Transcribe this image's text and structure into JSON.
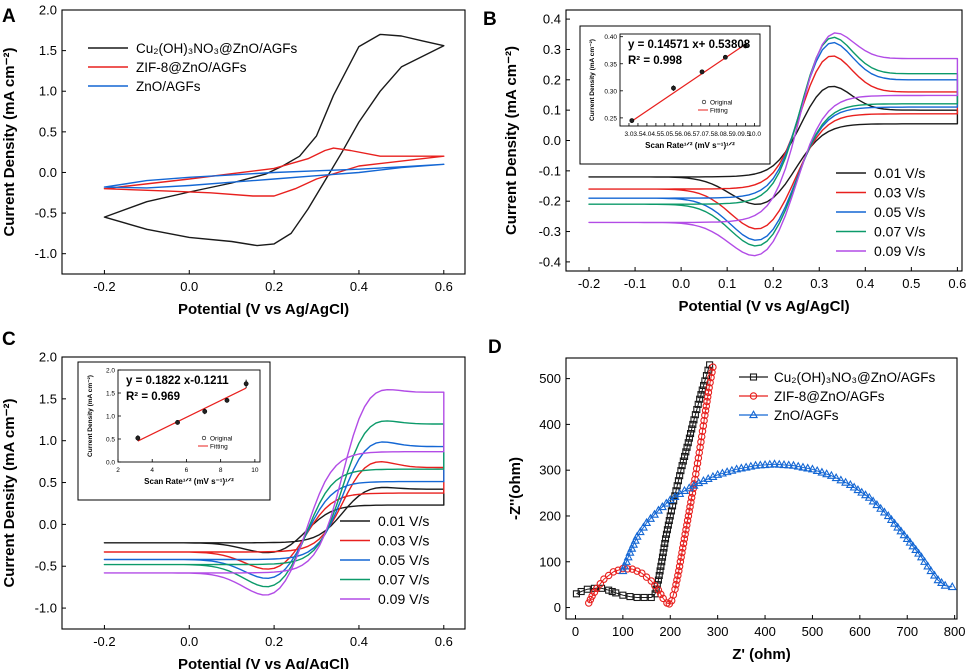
{
  "colors": {
    "black": "#1a1a1a",
    "red": "#e8201e",
    "blue": "#1467d4",
    "green": "#0c9a6a",
    "violet": "#b24ce6",
    "fit_red": "#e8201e"
  },
  "chart_data": [
    {
      "panel_label": "A",
      "type": "line",
      "title": "",
      "xlabel": "Potential (V vs Ag/AgCl)",
      "ylabel": "Current Density (mA cm⁻²)",
      "xlim": [
        -0.3,
        0.65
      ],
      "ylim": [
        -1.25,
        2.0
      ],
      "xticks": [
        -0.2,
        0.0,
        0.2,
        0.4,
        0.6
      ],
      "xtick_labels": [
        "-0.2",
        "0.0",
        "0.2",
        "0.4",
        "0.6"
      ],
      "yticks": [
        -1.0,
        -0.5,
        0.0,
        0.5,
        1.0,
        1.5,
        2.0
      ],
      "ytick_labels": [
        "-1.0",
        "-0.5",
        "0.0",
        "0.5",
        "1.0",
        "1.5",
        "2.0"
      ],
      "legend_position": "top-left",
      "series": [
        {
          "name": "Cu₂(OH)₃NO₃@ZnO/AGFs",
          "color": "black",
          "x": [
            -0.2,
            -0.1,
            0.0,
            0.1,
            0.18,
            0.22,
            0.26,
            0.3,
            0.34,
            0.4,
            0.45,
            0.5,
            0.55,
            0.6,
            0.6,
            0.5,
            0.45,
            0.4,
            0.36,
            0.32,
            0.28,
            0.24,
            0.2,
            0.16,
            0.1,
            0.0,
            -0.1,
            -0.2
          ],
          "y": [
            -0.55,
            -0.36,
            -0.24,
            -0.13,
            -0.02,
            0.08,
            0.2,
            0.45,
            0.95,
            1.55,
            1.7,
            1.68,
            1.62,
            1.56,
            1.56,
            1.3,
            1.0,
            0.62,
            0.25,
            -0.1,
            -0.45,
            -0.75,
            -0.88,
            -0.9,
            -0.85,
            -0.8,
            -0.7,
            -0.55
          ]
        },
        {
          "name": "ZIF-8@ZnO/AGFs",
          "color": "red",
          "x": [
            -0.2,
            0.0,
            0.2,
            0.28,
            0.32,
            0.34,
            0.38,
            0.45,
            0.6,
            0.6,
            0.4,
            0.3,
            0.25,
            0.2,
            0.15,
            0.05,
            -0.05,
            -0.2
          ],
          "y": [
            -0.2,
            -0.08,
            0.05,
            0.17,
            0.27,
            0.3,
            0.27,
            0.2,
            0.2,
            0.2,
            0.08,
            -0.08,
            -0.2,
            -0.29,
            -0.29,
            -0.25,
            -0.23,
            -0.2
          ]
        },
        {
          "name": "ZnO/AGFs",
          "color": "blue",
          "x": [
            -0.2,
            -0.1,
            0.0,
            0.1,
            0.2,
            0.3,
            0.4,
            0.5,
            0.6,
            0.6,
            0.5,
            0.4,
            0.3,
            0.2,
            0.1,
            0.0,
            -0.1,
            -0.2
          ],
          "y": [
            -0.18,
            -0.1,
            -0.06,
            -0.03,
            0.0,
            0.02,
            0.04,
            0.07,
            0.1,
            0.1,
            0.06,
            0.0,
            -0.04,
            -0.08,
            -0.12,
            -0.16,
            -0.19,
            -0.18
          ]
        }
      ]
    },
    {
      "panel_label": "B",
      "type": "line",
      "title": "",
      "xlabel": "Potential (V vs Ag/AgCl)",
      "ylabel": "Current Density (mA cm⁻²)",
      "xlim": [
        -0.25,
        0.61
      ],
      "ylim": [
        -0.43,
        0.43
      ],
      "xticks": [
        -0.2,
        -0.1,
        0.0,
        0.1,
        0.2,
        0.3,
        0.4,
        0.5,
        0.6
      ],
      "xtick_labels": [
        "-0.2",
        "-0.1",
        "0.0",
        "0.1",
        "0.2",
        "0.3",
        "0.4",
        "0.5",
        "0.6"
      ],
      "yticks": [
        -0.4,
        -0.3,
        -0.2,
        -0.1,
        0.0,
        0.1,
        0.2,
        0.3,
        0.4
      ],
      "ytick_labels": [
        "-0.4",
        "-0.3",
        "-0.2",
        "-0.1",
        "0.0",
        "0.1",
        "0.2",
        "0.3",
        "0.4"
      ],
      "legend_position": "bottom-right",
      "series": [
        {
          "name": "0.01 V/s",
          "color": "black",
          "peak": 0.2,
          "valley": -0.22,
          "start": -0.12,
          "end": 0.1
        },
        {
          "name": "0.03 V/s",
          "color": "red",
          "peak": 0.31,
          "valley": -0.305,
          "start": -0.16,
          "end": 0.16
        },
        {
          "name": "0.05 V/s",
          "color": "blue",
          "peak": 0.36,
          "valley": -0.345,
          "start": -0.19,
          "end": 0.2
        },
        {
          "name": "0.07 V/s",
          "color": "green",
          "peak": 0.38,
          "valley": -0.365,
          "start": -0.21,
          "end": 0.22
        },
        {
          "name": "0.09 V/s",
          "color": "violet",
          "peak": 0.4,
          "valley": -0.4,
          "start": -0.27,
          "end": 0.27
        }
      ],
      "inset": {
        "equation": "y = 0.14571 x+ 0.53808",
        "r_squared": "R² = 0.998",
        "xlabel": "Scan Rate¹ᐟ² (mV s⁻¹)¹ᐟ²",
        "ylabel": "Current Density (mA cm⁻²)",
        "xlim": [
          2.5,
          10.3
        ],
        "ylim": [
          0.235,
          0.405
        ],
        "xticks": [
          3.0,
          3.5,
          4.0,
          4.5,
          5.0,
          5.5,
          6.0,
          6.5,
          7.0,
          7.5,
          8.0,
          8.5,
          9.0,
          9.5,
          10.0
        ],
        "xtick_labels": [
          "3.0",
          "3.5",
          "4.0",
          "4.5",
          "5.0",
          "5.5",
          "6.0",
          "6.5",
          "7.0",
          "7.5",
          "8.0",
          "8.5",
          "9.0",
          "9.5",
          "10.0"
        ],
        "yticks": [
          0.25,
          0.3,
          0.35,
          0.4
        ],
        "ytick_labels": [
          "0.25",
          "0.30",
          "0.35",
          "0.40"
        ],
        "points_x": [
          3.16,
          5.48,
          7.07,
          8.37,
          9.49
        ],
        "points_y": [
          0.245,
          0.305,
          0.335,
          0.362,
          0.383
        ],
        "errors": [
          0.004,
          0.005,
          0.003,
          0.002,
          0.004
        ],
        "fit_x": [
          3.16,
          9.49
        ],
        "fit_y": [
          0.244,
          0.386
        ],
        "legend_original": "Original",
        "legend_fitting": "Fitting"
      }
    },
    {
      "panel_label": "C",
      "type": "line",
      "title": "",
      "xlabel": "Potential (V vs Ag/AgCl)",
      "ylabel": "Current Density (mA cm⁻²)",
      "xlim": [
        -0.3,
        0.65
      ],
      "ylim": [
        -1.25,
        2.0
      ],
      "xticks": [
        -0.2,
        0.0,
        0.2,
        0.4,
        0.6
      ],
      "xtick_labels": [
        "-0.2",
        "0.0",
        "0.2",
        "0.4",
        "0.6"
      ],
      "yticks": [
        -1.0,
        -0.5,
        0.0,
        0.5,
        1.0,
        1.5,
        2.0
      ],
      "ytick_labels": [
        "-1.0",
        "-0.5",
        "0.0",
        "0.5",
        "1.0",
        "1.5",
        "2.0"
      ],
      "legend_position": "bottom-right",
      "series": [
        {
          "name": "0.01 V/s",
          "color": "black",
          "peak": 0.48,
          "valley": -0.36,
          "start": -0.22,
          "end": 0.42
        },
        {
          "name": "0.03 V/s",
          "color": "red",
          "peak": 0.82,
          "valley": -0.57,
          "start": -0.33,
          "end": 0.68
        },
        {
          "name": "0.05 V/s",
          "color": "blue",
          "peak": 1.07,
          "valley": -0.69,
          "start": -0.42,
          "end": 0.93
        },
        {
          "name": "0.07 V/s",
          "color": "green",
          "peak": 1.33,
          "valley": -0.8,
          "start": -0.48,
          "end": 1.2
        },
        {
          "name": "0.09 V/s",
          "color": "violet",
          "peak": 1.72,
          "valley": -0.91,
          "start": -0.58,
          "end": 1.58
        }
      ],
      "inset": {
        "equation": "y = 0.1822 x-0.1211",
        "r_squared": "R² = 0.969",
        "xlabel": "Scan Rate¹ᐟ² (mV s⁻¹)¹ᐟ²",
        "ylabel": "Current Density (mA cm⁻²)",
        "xlim": [
          2,
          10.3
        ],
        "ylim": [
          0.0,
          2.0
        ],
        "xticks": [
          2,
          4,
          6,
          8,
          10
        ],
        "xtick_labels": [
          "2",
          "4",
          "6",
          "8",
          "10"
        ],
        "yticks": [
          0.0,
          0.5,
          1.0,
          1.5,
          2.0
        ],
        "ytick_labels": [
          "0.0",
          "0.5",
          "1.0",
          "1.5",
          "2.0"
        ],
        "points_x": [
          3.16,
          5.48,
          7.07,
          8.37,
          9.49
        ],
        "points_y": [
          0.52,
          0.86,
          1.1,
          1.34,
          1.7
        ],
        "errors": [
          0.06,
          0.04,
          0.06,
          0.05,
          0.09
        ],
        "fit_x": [
          3.16,
          9.49
        ],
        "fit_y": [
          0.455,
          1.608
        ],
        "legend_original": "Original",
        "legend_fitting": "Fitting"
      }
    },
    {
      "panel_label": "D",
      "type": "scatter",
      "title": "",
      "xlabel": "Z' (ohm)",
      "ylabel": "-Z''(ohm)",
      "xlim": [
        -20,
        805
      ],
      "ylim": [
        -25,
        545
      ],
      "xticks": [
        0,
        100,
        200,
        300,
        400,
        500,
        600,
        700,
        800
      ],
      "xtick_labels": [
        "0",
        "100",
        "200",
        "300",
        "400",
        "500",
        "600",
        "700",
        "800"
      ],
      "yticks": [
        0,
        100,
        200,
        300,
        400,
        500
      ],
      "ytick_labels": [
        "0",
        "100",
        "200",
        "300",
        "400",
        "500"
      ],
      "legend_position": "top-right",
      "series": [
        {
          "name": "Cu₂(OH)₃NO₃@ZnO/AGFs",
          "color": "black",
          "marker": "square",
          "x": [
            2,
            12,
            25,
            40,
            55,
            70,
            85,
            100,
            115,
            130,
            145,
            160,
            168,
            175,
            182,
            190,
            200,
            212,
            225,
            238,
            250,
            262,
            273,
            283
          ],
          "y": [
            30,
            35,
            40,
            42,
            42,
            38,
            32,
            27,
            24,
            22,
            22,
            22,
            30,
            60,
            100,
            150,
            200,
            255,
            310,
            360,
            410,
            455,
            495,
            530
          ]
        },
        {
          "name": "ZIF-8@ZnO/AGFs",
          "color": "red",
          "marker": "circle",
          "x": [
            28,
            35,
            45,
            60,
            80,
            100,
            120,
            140,
            160,
            175,
            185,
            193,
            198,
            203,
            210,
            218,
            228,
            240,
            252,
            263,
            273,
            282,
            290
          ],
          "y": [
            10,
            25,
            42,
            62,
            78,
            85,
            84,
            75,
            58,
            38,
            20,
            10,
            8,
            15,
            40,
            80,
            140,
            210,
            280,
            350,
            420,
            480,
            525
          ]
        },
        {
          "name": "ZnO/AGFs",
          "color": "blue",
          "marker": "triangle",
          "x": [
            100,
            115,
            130,
            150,
            175,
            200,
            230,
            260,
            300,
            340,
            380,
            420,
            460,
            500,
            540,
            580,
            620,
            660,
            700,
            730,
            750,
            765,
            780,
            795
          ],
          "y": [
            80,
            120,
            155,
            185,
            212,
            235,
            255,
            272,
            290,
            302,
            310,
            313,
            310,
            302,
            288,
            268,
            240,
            200,
            150,
            110,
            80,
            60,
            48,
            45
          ]
        }
      ]
    }
  ]
}
